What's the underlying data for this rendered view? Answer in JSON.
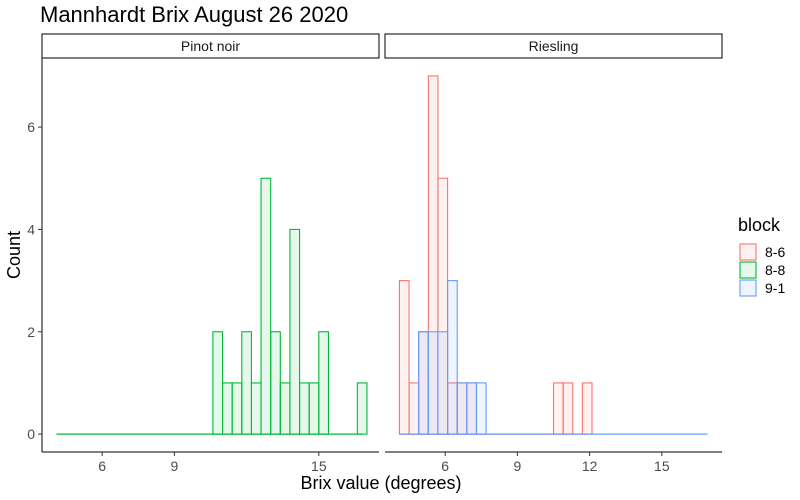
{
  "chart_data": {
    "type": "histogram",
    "title": "Mannhardt Brix August 26 2020",
    "xlabel": "Brix value (degrees)",
    "ylabel": "Count",
    "x_range": [
      3.5,
      17.5
    ],
    "y_range": [
      -0.35,
      7.35
    ],
    "bin_width": 0.4,
    "x_ticks": [
      6,
      9,
      15
    ],
    "x_ticks_right": [
      6,
      9,
      12,
      15
    ],
    "y_ticks": [
      0,
      2,
      4,
      6
    ],
    "legend": {
      "title": "block",
      "placement": "right",
      "entries": [
        {
          "label": "8-6",
          "color": "#F8766D"
        },
        {
          "label": "8-8",
          "color": "#00BA38"
        },
        {
          "label": "9-1",
          "color": "#619CFF"
        }
      ]
    },
    "facets": [
      {
        "label": "Pinot noir",
        "series": [
          {
            "block": "8-8",
            "color": "#00BA38",
            "bins": [
              {
                "x": 10.6,
                "count": 2
              },
              {
                "x": 11.0,
                "count": 1
              },
              {
                "x": 11.4,
                "count": 1
              },
              {
                "x": 11.8,
                "count": 2
              },
              {
                "x": 12.2,
                "count": 1
              },
              {
                "x": 12.6,
                "count": 5
              },
              {
                "x": 13.0,
                "count": 2
              },
              {
                "x": 13.4,
                "count": 1
              },
              {
                "x": 13.8,
                "count": 4
              },
              {
                "x": 14.2,
                "count": 1
              },
              {
                "x": 14.6,
                "count": 1
              },
              {
                "x": 15.0,
                "count": 2
              },
              {
                "x": 16.6,
                "count": 1
              }
            ],
            "baseline": [
              4.1,
              16.8
            ]
          }
        ]
      },
      {
        "label": "Riesling",
        "series": [
          {
            "block": "8-6",
            "color": "#F8766D",
            "bins": [
              {
                "x": 4.1,
                "count": 3
              },
              {
                "x": 4.5,
                "count": 1
              },
              {
                "x": 4.9,
                "count": 2
              },
              {
                "x": 5.3,
                "count": 7
              },
              {
                "x": 5.7,
                "count": 5
              },
              {
                "x": 6.1,
                "count": 1
              },
              {
                "x": 6.5,
                "count": 1
              },
              {
                "x": 6.9,
                "count": 1
              },
              {
                "x": 10.5,
                "count": 1
              },
              {
                "x": 10.9,
                "count": 1
              },
              {
                "x": 11.7,
                "count": 1
              }
            ],
            "baseline": [
              4.1,
              11.9
            ]
          },
          {
            "block": "9-1",
            "color": "#619CFF",
            "bins": [
              {
                "x": 4.9,
                "count": 2
              },
              {
                "x": 5.3,
                "count": 2
              },
              {
                "x": 5.7,
                "count": 2
              },
              {
                "x": 6.1,
                "count": 3
              },
              {
                "x": 6.5,
                "count": 1
              },
              {
                "x": 6.9,
                "count": 1
              },
              {
                "x": 7.3,
                "count": 1
              }
            ],
            "baseline": [
              4.1,
              16.9
            ]
          }
        ]
      }
    ]
  }
}
